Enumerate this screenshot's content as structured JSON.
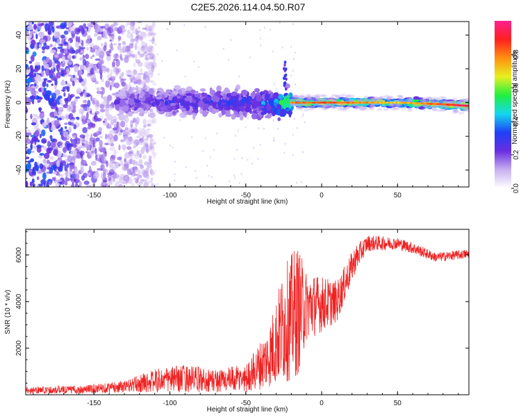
{
  "title": "C2E5.2026.114.04.50.R07",
  "chart_data": [
    {
      "type": "heatmap",
      "name": "spectrogram",
      "xlabel": "Height of straight line (km)",
      "ylabel": "Frequency (Hz)",
      "xlim": [
        -195,
        97
      ],
      "ylim": [
        -50,
        48
      ],
      "xticks": [
        -150,
        -100,
        -50,
        0,
        50
      ],
      "yticks": [
        -40,
        -20,
        0,
        20,
        40
      ],
      "colorbar": {
        "label": "Normalized spectral amplitude",
        "range": [
          0,
          1
        ],
        "ticks": [
          0.0,
          0.2,
          0.4,
          0.6,
          0.8
        ],
        "tick_labels": [
          "0.0",
          "0.2",
          "0.4",
          "0.6",
          "0.8"
        ],
        "colors": [
          "#ffffff",
          "#c8b0f0",
          "#6a2ee0",
          "#1f3ff5",
          "#15d8f0",
          "#20f040",
          "#e8f020",
          "#ff9010",
          "#ff2020",
          "#ff2090"
        ]
      },
      "ridge": [
        {
          "x": -130,
          "freq": 0,
          "amp": 0.25
        },
        {
          "x": -100,
          "freq": 0,
          "amp": 0.3
        },
        {
          "x": -50,
          "freq": 0,
          "amp": 0.35
        },
        {
          "x": -30,
          "freq": -1,
          "amp": 0.45
        },
        {
          "x": -20,
          "freq": 0,
          "amp": 0.8
        },
        {
          "x": 0,
          "freq": 0,
          "amp": 0.85
        },
        {
          "x": 20,
          "freq": 0,
          "amp": 0.8
        },
        {
          "x": 50,
          "freq": 0,
          "amp": 0.7
        },
        {
          "x": 80,
          "freq": -1,
          "amp": 0.85
        },
        {
          "x": 97,
          "freq": -2,
          "amp": 0.95
        }
      ]
    },
    {
      "type": "line",
      "name": "snr",
      "xlabel": "Height of straight line (km)",
      "ylabel": "SNR (10 * v/v)",
      "xlim": [
        -195,
        97
      ],
      "ylim": [
        0,
        7100
      ],
      "xticks": [
        -150,
        -100,
        -50,
        0,
        50
      ],
      "yticks": [
        2000,
        4000,
        6000
      ],
      "color": "#ee2222",
      "envelope": [
        {
          "x": -195,
          "mean": 200,
          "noise": 150
        },
        {
          "x": -160,
          "mean": 220,
          "noise": 180
        },
        {
          "x": -130,
          "mean": 350,
          "noise": 250
        },
        {
          "x": -110,
          "mean": 600,
          "noise": 500
        },
        {
          "x": -90,
          "mean": 700,
          "noise": 600
        },
        {
          "x": -70,
          "mean": 600,
          "noise": 500
        },
        {
          "x": -50,
          "mean": 700,
          "noise": 600
        },
        {
          "x": -35,
          "mean": 1600,
          "noise": 1300
        },
        {
          "x": -25,
          "mean": 3000,
          "noise": 2500
        },
        {
          "x": -16,
          "mean": 3600,
          "noise": 2900
        },
        {
          "x": -10,
          "mean": 3800,
          "noise": 1500
        },
        {
          "x": 10,
          "mean": 4000,
          "noise": 900
        },
        {
          "x": 22,
          "mean": 5800,
          "noise": 600
        },
        {
          "x": 30,
          "mean": 6500,
          "noise": 350
        },
        {
          "x": 50,
          "mean": 6500,
          "noise": 250
        },
        {
          "x": 60,
          "mean": 6300,
          "noise": 250
        },
        {
          "x": 75,
          "mean": 5900,
          "noise": 200
        },
        {
          "x": 97,
          "mean": 6050,
          "noise": 200
        }
      ]
    }
  ]
}
